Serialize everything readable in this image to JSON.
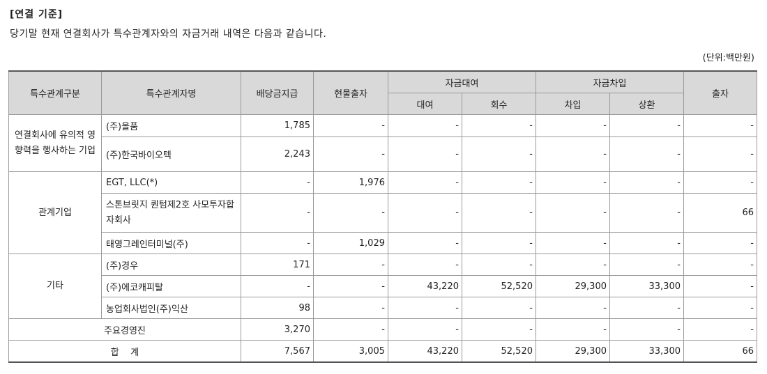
{
  "heading": "[연결 기준]",
  "intro": "당기말 현재 연결회사가 특수관계자와의 자금거래 내역은 다음과 같습니다.",
  "unit": "(단위:백만원)",
  "table": {
    "headers": {
      "category": "특수관계구분",
      "party": "특수관계자명",
      "dividend": "배당금지급",
      "in_kind": "현물출자",
      "loan_group": "자금대여",
      "loan": "대여",
      "collect": "회수",
      "borrow_group": "자금차입",
      "borrow": "차입",
      "repay": "상환",
      "invest": "출자"
    },
    "groups": [
      {
        "category": "연결회사에 유의적 영향력을 행사하는 기업",
        "rows": [
          {
            "name": "(주)올품",
            "values": [
              "1,785",
              "-",
              "-",
              "-",
              "-",
              "-",
              "-"
            ]
          },
          {
            "name": "(주)한국바이오텍",
            "values": [
              "2,243",
              "-",
              "-",
              "-",
              "-",
              "-",
              "-"
            ]
          }
        ]
      },
      {
        "category": "관계기업",
        "rows": [
          {
            "name": "EGT, LLC(*)",
            "values": [
              "-",
              "1,976",
              "-",
              "-",
              "-",
              "-",
              "-"
            ]
          },
          {
            "name": "스톤브릿지 퀀텀제2호 사모투자합자회사",
            "values": [
              "-",
              "-",
              "-",
              "-",
              "-",
              "-",
              "66"
            ]
          },
          {
            "name": "태영그레인터미널(주)",
            "values": [
              "-",
              "1,029",
              "-",
              "-",
              "-",
              "-",
              "-"
            ]
          }
        ]
      },
      {
        "category": "기타",
        "rows": [
          {
            "name": "(주)경우",
            "values": [
              "171",
              "-",
              "-",
              "-",
              "-",
              "-",
              "-"
            ]
          },
          {
            "name": "(주)에코캐피탈",
            "values": [
              "-",
              "-",
              "43,220",
              "52,520",
              "29,300",
              "33,300",
              "-"
            ]
          },
          {
            "name": "농업회사법인(주)익산",
            "values": [
              "98",
              "-",
              "-",
              "-",
              "-",
              "-",
              "-"
            ]
          }
        ]
      }
    ],
    "executives": {
      "label": "주요경영진",
      "values": [
        "3,270",
        "-",
        "-",
        "-",
        "-",
        "-",
        "-"
      ]
    },
    "total": {
      "label": "합    계",
      "values": [
        "7,567",
        "3,005",
        "43,220",
        "52,520",
        "29,300",
        "33,300",
        "66"
      ]
    }
  }
}
